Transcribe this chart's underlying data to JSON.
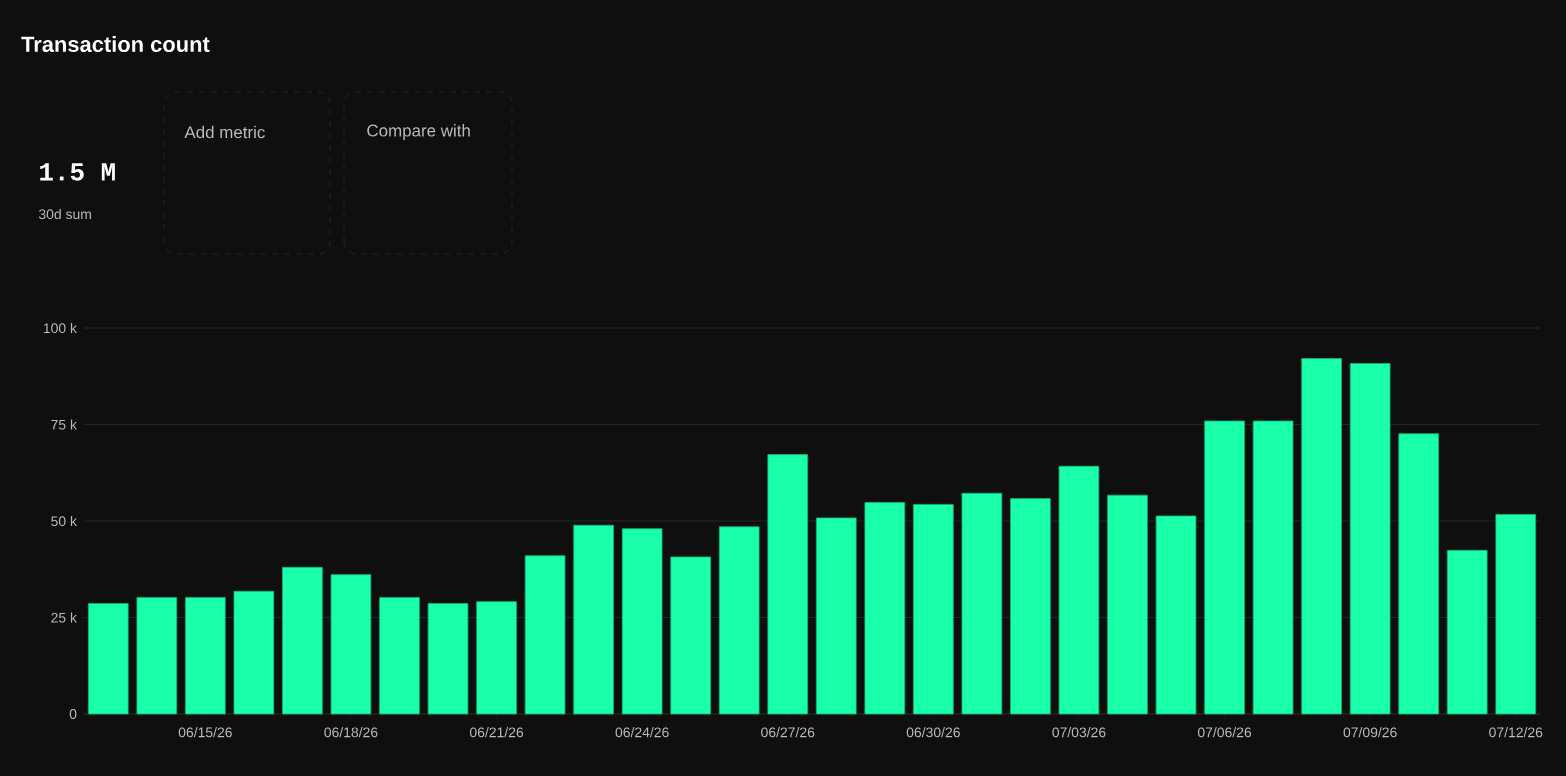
{
  "chart_data": {
    "type": "bar",
    "title": "Transaction count",
    "categories": [
      null,
      null,
      "06/15/26",
      null,
      null,
      "06/18/26",
      null,
      null,
      "06/21/26",
      null,
      null,
      "06/24/26",
      null,
      null,
      "06/27/26",
      null,
      null,
      "06/30/26",
      null,
      null,
      "07/03/26",
      null,
      null,
      "07/06/26",
      null,
      null,
      "07/09/26",
      null,
      null,
      "07/12/26"
    ],
    "series": [
      {
        "color": "#1affaa",
        "values": [
          28600,
          30200,
          30200,
          31800,
          38000,
          36100,
          30200,
          28600,
          29100,
          41000,
          48900,
          48000,
          40700,
          48500,
          67200,
          50800,
          54800,
          54300,
          57200,
          55800,
          64200,
          56700,
          51300,
          75900,
          75900,
          92100,
          90800,
          72600,
          42400,
          51700
        ]
      }
    ],
    "ylim": [
      0,
      100000
    ],
    "yticks": [
      {
        "value": 0,
        "label": "0"
      },
      {
        "value": 25000,
        "label": "25 k"
      },
      {
        "value": 50000,
        "label": "50 k"
      },
      {
        "value": 75000,
        "label": "75 k"
      },
      {
        "value": 100000,
        "label": "100 k"
      }
    ],
    "grid": "y",
    "annotations": [
      "1.5 M",
      "30d sum",
      "Add metric",
      "Compare with"
    ]
  }
}
